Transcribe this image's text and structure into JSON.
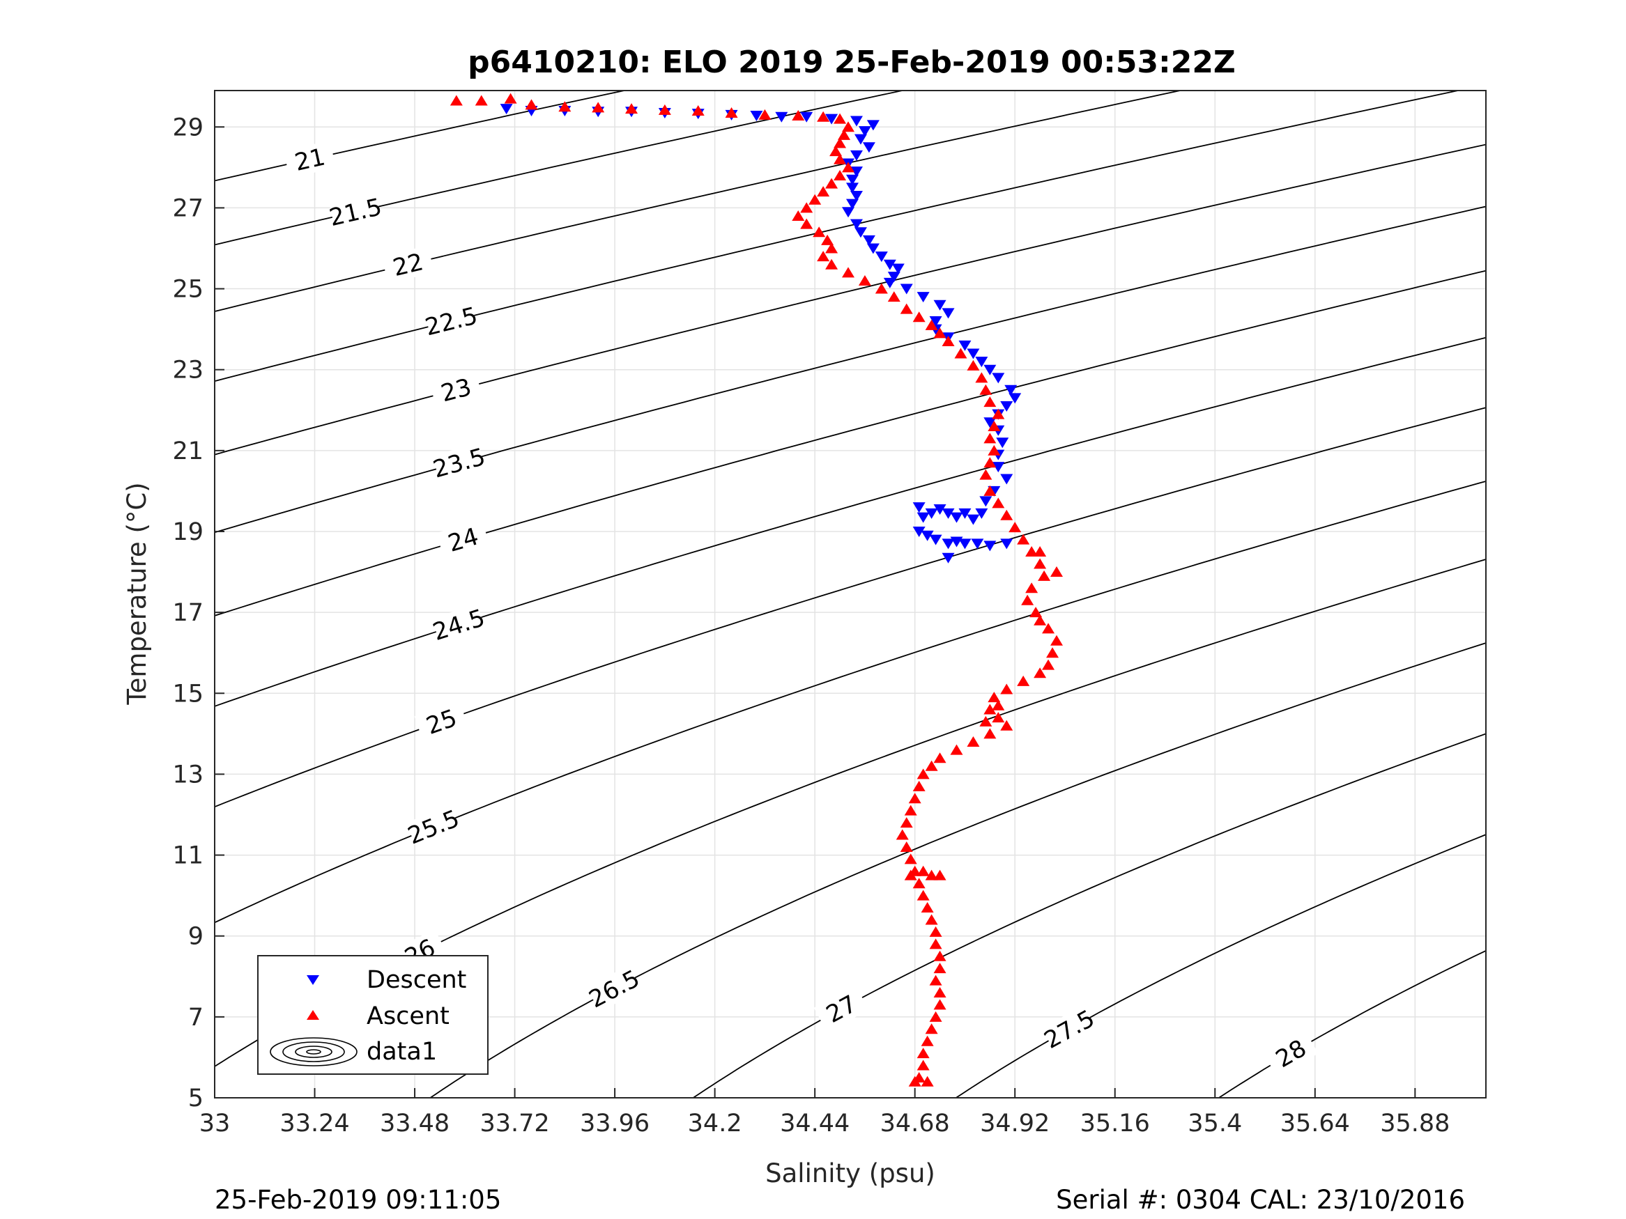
{
  "chart_data": {
    "type": "scatter",
    "title": "p6410210: ELO 2019 25-Feb-2019 00:53:22Z",
    "xlabel": "Salinity (psu)",
    "ylabel": "Temperature (°C)",
    "xlim": [
      33,
      36.05
    ],
    "ylim": [
      5,
      29.9
    ],
    "xticks": [
      "33",
      "33.24",
      "33.48",
      "33.72",
      "33.96",
      "34.2",
      "34.44",
      "34.68",
      "34.92",
      "35.16",
      "35.4",
      "35.64",
      "35.88"
    ],
    "yticks": [
      "5",
      "7",
      "9",
      "11",
      "13",
      "15",
      "17",
      "19",
      "21",
      "23",
      "25",
      "27",
      "29"
    ],
    "grid": true,
    "legend_position": "bottom-left",
    "legend": [
      "Descent",
      "Ascent",
      "data1"
    ],
    "contour_levels": [
      "21",
      "21.5",
      "22",
      "22.5",
      "23",
      "23.5",
      "24",
      "24.5",
      "25",
      "25.5",
      "26",
      "26.5",
      "27",
      "27.5",
      "28"
    ],
    "series": [
      {
        "name": "Descent",
        "marker": "triangle-down",
        "color": "#0000ff",
        "points": [
          [
            33.7,
            29.45
          ],
          [
            33.76,
            29.4
          ],
          [
            33.84,
            29.4
          ],
          [
            33.92,
            29.38
          ],
          [
            34.0,
            29.38
          ],
          [
            34.08,
            29.35
          ],
          [
            34.16,
            29.33
          ],
          [
            34.24,
            29.3
          ],
          [
            34.3,
            29.28
          ],
          [
            34.36,
            29.25
          ],
          [
            34.42,
            29.25
          ],
          [
            34.48,
            29.2
          ],
          [
            34.54,
            29.15
          ],
          [
            34.58,
            29.05
          ],
          [
            34.56,
            28.9
          ],
          [
            34.55,
            28.7
          ],
          [
            34.57,
            28.5
          ],
          [
            34.54,
            28.3
          ],
          [
            34.52,
            28.1
          ],
          [
            34.54,
            27.9
          ],
          [
            34.53,
            27.7
          ],
          [
            34.53,
            27.5
          ],
          [
            34.54,
            27.3
          ],
          [
            34.53,
            27.1
          ],
          [
            34.52,
            26.9
          ],
          [
            34.54,
            26.6
          ],
          [
            34.55,
            26.4
          ],
          [
            34.57,
            26.2
          ],
          [
            34.58,
            26.0
          ],
          [
            34.6,
            25.8
          ],
          [
            34.62,
            25.6
          ],
          [
            34.64,
            25.5
          ],
          [
            34.63,
            25.3
          ],
          [
            34.62,
            25.15
          ],
          [
            34.66,
            25.0
          ],
          [
            34.7,
            24.8
          ],
          [
            34.74,
            24.6
          ],
          [
            34.76,
            24.4
          ],
          [
            34.73,
            24.2
          ],
          [
            34.73,
            24.0
          ],
          [
            34.76,
            23.8
          ],
          [
            34.8,
            23.6
          ],
          [
            34.82,
            23.4
          ],
          [
            34.84,
            23.2
          ],
          [
            34.86,
            23.0
          ],
          [
            34.88,
            22.8
          ],
          [
            34.91,
            22.5
          ],
          [
            34.92,
            22.3
          ],
          [
            34.9,
            22.1
          ],
          [
            34.88,
            21.9
          ],
          [
            34.86,
            21.7
          ],
          [
            34.88,
            21.5
          ],
          [
            34.89,
            21.2
          ],
          [
            34.88,
            20.9
          ],
          [
            34.88,
            20.6
          ],
          [
            34.9,
            20.3
          ],
          [
            34.87,
            20.0
          ],
          [
            34.85,
            19.75
          ],
          [
            34.84,
            19.45
          ],
          [
            34.82,
            19.3
          ],
          [
            34.8,
            19.45
          ],
          [
            34.78,
            19.35
          ],
          [
            34.76,
            19.45
          ],
          [
            34.74,
            19.55
          ],
          [
            34.72,
            19.45
          ],
          [
            34.7,
            19.35
          ],
          [
            34.69,
            19.6
          ],
          [
            34.69,
            19.0
          ],
          [
            34.71,
            18.9
          ],
          [
            34.73,
            18.8
          ],
          [
            34.76,
            18.7
          ],
          [
            34.78,
            18.75
          ],
          [
            34.8,
            18.7
          ],
          [
            34.83,
            18.7
          ],
          [
            34.86,
            18.65
          ],
          [
            34.9,
            18.7
          ],
          [
            34.76,
            18.35
          ]
        ]
      },
      {
        "name": "Ascent",
        "marker": "triangle-up",
        "color": "#ff0000",
        "points": [
          [
            33.58,
            29.65
          ],
          [
            33.64,
            29.65
          ],
          [
            33.71,
            29.7
          ],
          [
            33.76,
            29.55
          ],
          [
            33.84,
            29.5
          ],
          [
            33.92,
            29.48
          ],
          [
            34.0,
            29.45
          ],
          [
            34.08,
            29.42
          ],
          [
            34.16,
            29.4
          ],
          [
            34.24,
            29.35
          ],
          [
            34.32,
            29.3
          ],
          [
            34.4,
            29.28
          ],
          [
            34.46,
            29.25
          ],
          [
            34.5,
            29.2
          ],
          [
            34.52,
            29.0
          ],
          [
            34.51,
            28.8
          ],
          [
            34.5,
            28.6
          ],
          [
            34.49,
            28.4
          ],
          [
            34.5,
            28.2
          ],
          [
            34.52,
            28.0
          ],
          [
            34.5,
            27.8
          ],
          [
            34.48,
            27.6
          ],
          [
            34.46,
            27.4
          ],
          [
            34.44,
            27.2
          ],
          [
            34.42,
            27.0
          ],
          [
            34.4,
            26.8
          ],
          [
            34.42,
            26.6
          ],
          [
            34.45,
            26.4
          ],
          [
            34.47,
            26.2
          ],
          [
            34.48,
            26.0
          ],
          [
            34.46,
            25.8
          ],
          [
            34.48,
            25.6
          ],
          [
            34.52,
            25.4
          ],
          [
            34.56,
            25.2
          ],
          [
            34.6,
            25.0
          ],
          [
            34.63,
            24.8
          ],
          [
            34.66,
            24.5
          ],
          [
            34.69,
            24.3
          ],
          [
            34.72,
            24.1
          ],
          [
            34.74,
            23.9
          ],
          [
            34.76,
            23.7
          ],
          [
            34.79,
            23.4
          ],
          [
            34.82,
            23.1
          ],
          [
            34.84,
            22.8
          ],
          [
            34.85,
            22.5
          ],
          [
            34.86,
            22.2
          ],
          [
            34.88,
            21.9
          ],
          [
            34.87,
            21.6
          ],
          [
            34.86,
            21.3
          ],
          [
            34.87,
            21.0
          ],
          [
            34.86,
            20.7
          ],
          [
            34.85,
            20.4
          ],
          [
            34.86,
            20.0
          ],
          [
            34.88,
            19.7
          ],
          [
            34.9,
            19.4
          ],
          [
            34.92,
            19.1
          ],
          [
            34.94,
            18.8
          ],
          [
            34.96,
            18.5
          ],
          [
            34.98,
            18.2
          ],
          [
            34.99,
            17.9
          ],
          [
            34.96,
            17.6
          ],
          [
            34.95,
            17.3
          ],
          [
            34.97,
            17.0
          ],
          [
            34.98,
            16.8
          ],
          [
            35.0,
            16.6
          ],
          [
            35.02,
            16.3
          ],
          [
            35.01,
            16.0
          ],
          [
            35.0,
            15.7
          ],
          [
            34.98,
            15.5
          ],
          [
            34.94,
            15.3
          ],
          [
            34.9,
            15.1
          ],
          [
            34.87,
            14.9
          ],
          [
            34.86,
            14.6
          ],
          [
            34.88,
            14.4
          ],
          [
            34.9,
            14.2
          ],
          [
            34.86,
            14.0
          ],
          [
            34.82,
            13.8
          ],
          [
            34.78,
            13.6
          ],
          [
            34.74,
            13.4
          ],
          [
            34.72,
            13.2
          ],
          [
            34.7,
            13.0
          ],
          [
            34.69,
            12.7
          ],
          [
            34.68,
            12.4
          ],
          [
            34.67,
            12.1
          ],
          [
            34.66,
            11.8
          ],
          [
            34.65,
            11.5
          ],
          [
            34.66,
            11.2
          ],
          [
            34.67,
            10.9
          ],
          [
            34.68,
            10.6
          ],
          [
            34.69,
            10.3
          ],
          [
            34.7,
            10.0
          ],
          [
            34.71,
            9.7
          ],
          [
            34.72,
            9.4
          ],
          [
            34.73,
            9.1
          ],
          [
            34.73,
            8.8
          ],
          [
            34.74,
            8.5
          ],
          [
            34.74,
            8.2
          ],
          [
            34.73,
            7.9
          ],
          [
            34.74,
            7.6
          ],
          [
            34.74,
            7.3
          ],
          [
            34.73,
            7.0
          ],
          [
            34.72,
            6.7
          ],
          [
            34.71,
            6.4
          ],
          [
            34.7,
            6.1
          ],
          [
            34.7,
            5.8
          ],
          [
            34.69,
            5.5
          ],
          [
            34.68,
            5.4
          ],
          [
            34.71,
            5.4
          ],
          [
            34.74,
            10.5
          ],
          [
            34.72,
            10.5
          ],
          [
            34.7,
            10.6
          ],
          [
            34.67,
            10.5
          ],
          [
            34.85,
            14.3
          ],
          [
            34.88,
            14.7
          ],
          [
            34.98,
            18.5
          ],
          [
            35.02,
            18.0
          ]
        ]
      }
    ],
    "legend_sample_colors": {
      "descent": "#0000ff",
      "ascent": "#ff0000",
      "contour": "#000000"
    }
  },
  "footer": {
    "timestamp": "25-Feb-2019 09:11:05",
    "serial": "Serial #: 0304  CAL: 23/10/2016"
  }
}
